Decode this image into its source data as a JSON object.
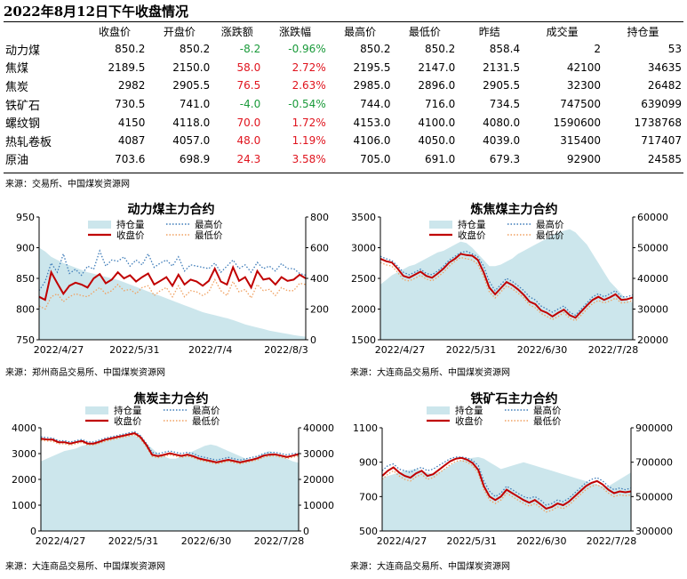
{
  "title": "2022年8月12日下午收盘情况",
  "table": {
    "headers": [
      "",
      "收盘价",
      "开盘价",
      "涨跌额",
      "涨跌幅",
      "最高价",
      "最低价",
      "昨结",
      "成交量",
      "持仓量"
    ],
    "rows": [
      {
        "name": "动力煤",
        "close": "850.2",
        "open": "850.2",
        "chg": "-8.2",
        "pct": "-0.96%",
        "high": "850.2",
        "low": "850.2",
        "settle": "858.4",
        "vol": "2",
        "oi": "53",
        "dir": "neg"
      },
      {
        "name": "焦煤",
        "close": "2189.5",
        "open": "2150.0",
        "chg": "58.0",
        "pct": "2.72%",
        "high": "2195.5",
        "low": "2147.0",
        "settle": "2131.5",
        "vol": "42100",
        "oi": "34635",
        "dir": "pos"
      },
      {
        "name": "焦炭",
        "close": "2982",
        "open": "2905.5",
        "chg": "76.5",
        "pct": "2.63%",
        "high": "2985.0",
        "low": "2896.0",
        "settle": "2905.5",
        "vol": "32300",
        "oi": "26482",
        "dir": "pos"
      },
      {
        "name": "铁矿石",
        "close": "730.5",
        "open": "741.0",
        "chg": "-4.0",
        "pct": "-0.54%",
        "high": "744.0",
        "low": "716.0",
        "settle": "734.5",
        "vol": "747500",
        "oi": "639099",
        "dir": "neg"
      },
      {
        "name": "螺纹钢",
        "close": "4150",
        "open": "4118.0",
        "chg": "70.0",
        "pct": "1.72%",
        "high": "4153.0",
        "low": "4100.0",
        "settle": "4080.0",
        "vol": "1590600",
        "oi": "1738768",
        "dir": "pos"
      },
      {
        "name": "热轧卷板",
        "close": "4087",
        "open": "4057.0",
        "chg": "48.0",
        "pct": "1.19%",
        "high": "4106.0",
        "low": "4050.0",
        "settle": "4039.0",
        "vol": "315400",
        "oi": "717407",
        "dir": "pos"
      },
      {
        "name": "原油",
        "close": "703.6",
        "open": "698.9",
        "chg": "24.3",
        "pct": "3.58%",
        "high": "705.0",
        "low": "691.0",
        "settle": "679.3",
        "vol": "92900",
        "oi": "24585",
        "dir": "pos"
      }
    ]
  },
  "table_source": "来源：交易所、中国煤炭资源网",
  "colors": {
    "oi": "#cce6ec",
    "high": "#3d7bb8",
    "low": "#f0a060",
    "close": "#c00000",
    "pos": "#e0141e",
    "neg": "#1a9a3a"
  },
  "legend": {
    "oi": "持仓量",
    "high": "最高价",
    "close": "收盘价",
    "low": "最低价"
  },
  "chart_data": [
    {
      "type": "line",
      "title": "动力煤主力合约",
      "source": "来源：郑州商品交易所、中国煤炭资源网",
      "xlabels": [
        "2022/4/27",
        "2022/5/31",
        "2022/7/4",
        "2022/8/3"
      ],
      "left_ticks": [
        750,
        800,
        850,
        900,
        950
      ],
      "ylim": [
        750,
        950
      ],
      "right_ticks": [
        0,
        200,
        400,
        600,
        800
      ],
      "y2lim": [
        0,
        800
      ],
      "series": [
        {
          "name": "持仓量",
          "axis": "right",
          "values": [
            600,
            575,
            540,
            520,
            500,
            485,
            470,
            455,
            440,
            430,
            420,
            410,
            400,
            390,
            375,
            360,
            345,
            330,
            315,
            300,
            285,
            270,
            255,
            240,
            225,
            210,
            195,
            180,
            170,
            160,
            150,
            140,
            128,
            115,
            100,
            90,
            80,
            70,
            60,
            52,
            45,
            38,
            30,
            25,
            20
          ]
        },
        {
          "name": "最高价",
          "axis": "left",
          "values": [
            830,
            845,
            875,
            860,
            890,
            858,
            865,
            855,
            870,
            865,
            895,
            870,
            880,
            878,
            885,
            870,
            880,
            872,
            890,
            868,
            875,
            880,
            870,
            885,
            862,
            872,
            870,
            868,
            866,
            875,
            860,
            870,
            880,
            866,
            872,
            860,
            876,
            866,
            870,
            862,
            874,
            866,
            866,
            858,
            855
          ]
        },
        {
          "name": "收盘价",
          "axis": "left",
          "values": [
            820,
            815,
            860,
            842,
            825,
            838,
            843,
            840,
            835,
            850,
            857,
            842,
            848,
            860,
            850,
            855,
            845,
            852,
            858,
            840,
            846,
            852,
            838,
            856,
            840,
            848,
            845,
            838,
            846,
            866,
            845,
            840,
            868,
            846,
            852,
            835,
            862,
            848,
            850,
            840,
            852,
            846,
            848,
            856,
            850
          ]
        },
        {
          "name": "最低价",
          "axis": "left",
          "values": [
            805,
            800,
            820,
            825,
            812,
            820,
            825,
            822,
            820,
            828,
            835,
            825,
            830,
            840,
            830,
            832,
            825,
            835,
            838,
            822,
            830,
            835,
            820,
            838,
            820,
            830,
            828,
            822,
            828,
            848,
            830,
            822,
            845,
            828,
            832,
            818,
            840,
            830,
            832,
            822,
            835,
            830,
            830,
            842,
            840
          ]
        }
      ]
    },
    {
      "type": "line",
      "title": "炼焦煤主力合约",
      "source": "来源：大连商品交易所、中国煤炭资源网",
      "xlabels": [
        "2022/4/27",
        "2022/5/31",
        "2022/6/30",
        "2022/7/28"
      ],
      "left_ticks": [
        1500,
        2000,
        2500,
        3000,
        3500
      ],
      "ylim": [
        1500,
        3500
      ],
      "right_ticks": [
        20000,
        30000,
        40000,
        50000,
        60000
      ],
      "y2lim": [
        20000,
        60000
      ],
      "series": [
        {
          "name": "持仓量",
          "axis": "right",
          "values": [
            38000,
            39500,
            41000,
            42000,
            43000,
            44000,
            44500,
            45500,
            46500,
            47500,
            48500,
            49000,
            50000,
            51000,
            52000,
            51500,
            50000,
            48000,
            46000,
            44000,
            44000,
            44500,
            45500,
            46500,
            48000,
            49000,
            50000,
            51000,
            52000,
            53000,
            54000,
            55000,
            55500,
            56000,
            55000,
            53000,
            51000,
            48000,
            45000,
            42000,
            39000,
            37000,
            35000,
            33000,
            32000
          ]
        },
        {
          "name": "最高价",
          "axis": "left",
          "values": [
            2860,
            2820,
            2790,
            2700,
            2600,
            2560,
            2600,
            2650,
            2580,
            2560,
            2620,
            2700,
            2800,
            2860,
            2920,
            2940,
            2900,
            2850,
            2700,
            2450,
            2300,
            2400,
            2500,
            2450,
            2380,
            2300,
            2200,
            2150,
            2050,
            2000,
            1950,
            2000,
            2050,
            1950,
            1900,
            2000,
            2100,
            2200,
            2250,
            2200,
            2250,
            2300,
            2200,
            2200,
            2230
          ]
        },
        {
          "name": "收盘价",
          "axis": "left",
          "values": [
            2820,
            2780,
            2760,
            2660,
            2540,
            2510,
            2560,
            2610,
            2540,
            2510,
            2580,
            2660,
            2760,
            2820,
            2900,
            2880,
            2870,
            2800,
            2600,
            2350,
            2240,
            2340,
            2440,
            2390,
            2320,
            2230,
            2120,
            2080,
            1980,
            1940,
            1880,
            1940,
            1990,
            1900,
            1860,
            1960,
            2060,
            2150,
            2200,
            2150,
            2190,
            2240,
            2150,
            2160,
            2190
          ]
        },
        {
          "name": "最低价",
          "axis": "left",
          "values": [
            2760,
            2720,
            2700,
            2600,
            2480,
            2460,
            2500,
            2550,
            2490,
            2460,
            2520,
            2600,
            2700,
            2780,
            2840,
            2820,
            2800,
            2730,
            2520,
            2280,
            2180,
            2280,
            2380,
            2330,
            2260,
            2180,
            2070,
            2020,
            1930,
            1880,
            1830,
            1880,
            1940,
            1850,
            1810,
            1900,
            2000,
            2090,
            2140,
            2100,
            2130,
            2180,
            2100,
            2110,
            2140
          ]
        }
      ]
    },
    {
      "type": "line",
      "title": "焦炭主力合约",
      "source": "来源：大连商品交易所、中国煤炭资源网",
      "xlabels": [
        "2022/4/27",
        "2022/5/31",
        "2022/6/30",
        "2022/7/28"
      ],
      "left_ticks": [
        0,
        1000,
        2000,
        3000,
        4000
      ],
      "ylim": [
        0,
        4000
      ],
      "right_ticks": [
        0,
        10000,
        20000,
        30000,
        40000
      ],
      "y2lim": [
        0,
        40000
      ],
      "series": [
        {
          "name": "持仓量",
          "axis": "right",
          "values": [
            27000,
            28000,
            29000,
            30000,
            31000,
            31500,
            32000,
            33000,
            33500,
            34000,
            34500,
            35000,
            35500,
            36000,
            36500,
            37000,
            37000,
            36000,
            34000,
            32000,
            30000,
            29000,
            28000,
            28000,
            29000,
            30000,
            31000,
            32000,
            33000,
            33500,
            33000,
            32000,
            31000,
            30000,
            29000,
            28000,
            28000,
            29000,
            30000,
            31000,
            30000,
            29000,
            28000,
            27000,
            26500
          ]
        },
        {
          "name": "最高价",
          "axis": "left",
          "values": [
            3650,
            3620,
            3600,
            3500,
            3500,
            3450,
            3500,
            3550,
            3450,
            3450,
            3520,
            3600,
            3650,
            3700,
            3750,
            3800,
            3850,
            3700,
            3400,
            3050,
            3000,
            3050,
            3100,
            3050,
            3000,
            3050,
            3000,
            2900,
            2850,
            2800,
            2750,
            2800,
            2850,
            2800,
            2750,
            2800,
            2850,
            2900,
            3000,
            3050,
            3050,
            3000,
            2950,
            3000,
            3000
          ]
        },
        {
          "name": "收盘价",
          "axis": "left",
          "values": [
            3580,
            3550,
            3540,
            3440,
            3440,
            3390,
            3440,
            3490,
            3390,
            3390,
            3460,
            3540,
            3590,
            3640,
            3690,
            3740,
            3790,
            3640,
            3340,
            2950,
            2900,
            2950,
            3010,
            2960,
            2910,
            2960,
            2900,
            2810,
            2760,
            2710,
            2660,
            2710,
            2760,
            2710,
            2660,
            2710,
            2760,
            2820,
            2920,
            2960,
            2970,
            2920,
            2870,
            2920,
            2980
          ]
        },
        {
          "name": "最低价",
          "axis": "left",
          "values": [
            3520,
            3490,
            3480,
            3380,
            3380,
            3330,
            3380,
            3430,
            3330,
            3330,
            3400,
            3480,
            3530,
            3580,
            3630,
            3680,
            3730,
            3570,
            3270,
            2890,
            2840,
            2890,
            2950,
            2900,
            2850,
            2900,
            2840,
            2750,
            2700,
            2650,
            2600,
            2650,
            2700,
            2650,
            2600,
            2650,
            2700,
            2760,
            2860,
            2900,
            2910,
            2860,
            2810,
            2860,
            2910
          ]
        }
      ]
    },
    {
      "type": "line",
      "title": "铁矿石主力合约",
      "source": "来源：大连商品交易所、中国煤炭资源网",
      "xlabels": [
        "2022/4/27",
        "2022/5/31",
        "2022/6/30",
        "2022/7/28"
      ],
      "left_ticks": [
        500,
        700,
        900,
        1100
      ],
      "ylim": [
        500,
        1100
      ],
      "right_ticks": [
        300000,
        500000,
        700000,
        900000
      ],
      "y2lim": [
        300000,
        900000
      ],
      "series": [
        {
          "name": "持仓量",
          "axis": "right",
          "values": [
            610000,
            620000,
            630000,
            640000,
            650000,
            655000,
            660000,
            650000,
            640000,
            630000,
            640000,
            660000,
            680000,
            700000,
            710000,
            720000,
            725000,
            730000,
            720000,
            700000,
            680000,
            660000,
            670000,
            680000,
            690000,
            700000,
            690000,
            680000,
            670000,
            660000,
            650000,
            640000,
            630000,
            620000,
            610000,
            600000,
            590000,
            580000,
            570000,
            560000,
            560000,
            580000,
            600000,
            620000,
            640000
          ]
        },
        {
          "name": "最高价",
          "axis": "left",
          "values": [
            850,
            880,
            890,
            860,
            850,
            840,
            860,
            870,
            850,
            860,
            880,
            900,
            920,
            930,
            930,
            925,
            910,
            880,
            790,
            730,
            700,
            720,
            760,
            740,
            720,
            700,
            690,
            700,
            680,
            650,
            660,
            680,
            670,
            690,
            720,
            750,
            780,
            800,
            810,
            790,
            760,
            740,
            750,
            740,
            750
          ]
        },
        {
          "name": "收盘价",
          "axis": "left",
          "values": [
            820,
            850,
            870,
            840,
            820,
            810,
            835,
            850,
            820,
            830,
            855,
            880,
            905,
            920,
            925,
            915,
            895,
            855,
            760,
            700,
            680,
            700,
            740,
            720,
            700,
            680,
            665,
            680,
            655,
            630,
            640,
            660,
            650,
            670,
            700,
            730,
            760,
            780,
            790,
            770,
            740,
            720,
            730,
            725,
            730
          ]
        },
        {
          "name": "最低价",
          "axis": "left",
          "values": [
            800,
            830,
            850,
            820,
            800,
            790,
            815,
            830,
            800,
            810,
            835,
            860,
            885,
            905,
            910,
            900,
            880,
            835,
            740,
            680,
            660,
            680,
            720,
            700,
            680,
            660,
            645,
            660,
            635,
            610,
            620,
            640,
            630,
            650,
            680,
            710,
            740,
            760,
            770,
            750,
            720,
            700,
            710,
            705,
            710
          ]
        }
      ]
    }
  ]
}
